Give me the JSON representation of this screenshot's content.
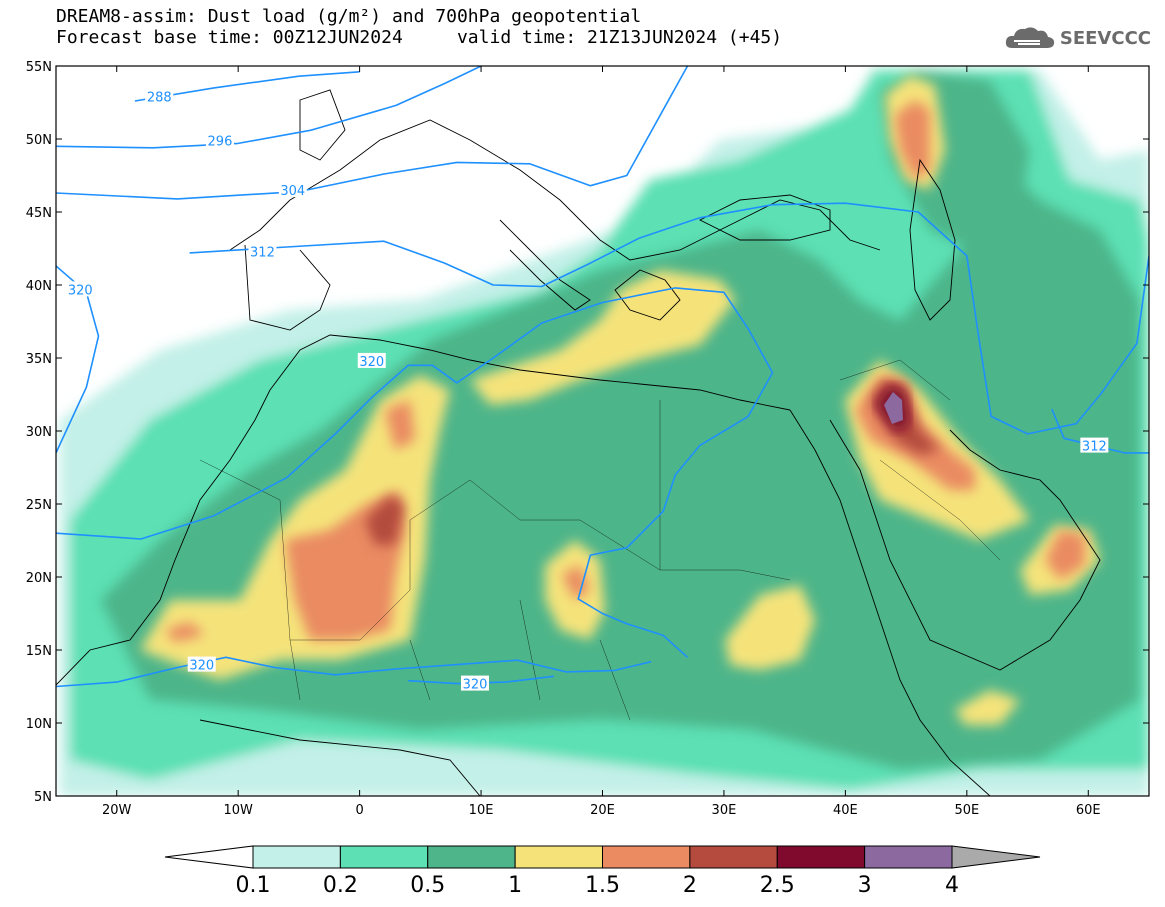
{
  "title": {
    "line1": "DREAM8-assim: Dust load (g/m²) and 700hPa geopotential",
    "line2": "Forecast base time: 00Z12JUN2024     valid time: 21Z13JUN2024 (+45)"
  },
  "logo": {
    "text": "SEEVCCC",
    "icon": "cloud-icon"
  },
  "map": {
    "lon_range": [
      -25,
      65
    ],
    "lat_range": [
      5,
      55
    ],
    "lon_ticks": [
      {
        "value": -20,
        "label": "20W"
      },
      {
        "value": -10,
        "label": "10W"
      },
      {
        "value": 0,
        "label": "0"
      },
      {
        "value": 10,
        "label": "10E"
      },
      {
        "value": 20,
        "label": "20E"
      },
      {
        "value": 30,
        "label": "30E"
      },
      {
        "value": 40,
        "label": "40E"
      },
      {
        "value": 50,
        "label": "50E"
      },
      {
        "value": 60,
        "label": "60E"
      }
    ],
    "lat_ticks": [
      {
        "value": 55,
        "label": "55N"
      },
      {
        "value": 50,
        "label": "50N"
      },
      {
        "value": 45,
        "label": "45N"
      },
      {
        "value": 40,
        "label": "40N"
      },
      {
        "value": 35,
        "label": "35N"
      },
      {
        "value": 30,
        "label": "30N"
      },
      {
        "value": 25,
        "label": "25N"
      },
      {
        "value": 20,
        "label": "20N"
      },
      {
        "value": 15,
        "label": "15N"
      },
      {
        "value": 10,
        "label": "10N"
      },
      {
        "value": 5,
        "label": "5N"
      }
    ],
    "contour_color": "#1e90ff",
    "contours": [
      {
        "label": "288",
        "label_at": [
          -16.5,
          52.9
        ],
        "points": [
          [
            -18.5,
            52.6
          ],
          [
            -12,
            53.5
          ],
          [
            -5,
            54.3
          ],
          [
            0,
            54.6
          ]
        ]
      },
      {
        "label": "296",
        "label_at": [
          -11.5,
          49.9
        ],
        "points": [
          [
            -25,
            49.5
          ],
          [
            -17,
            49.4
          ],
          [
            -10,
            49.7
          ],
          [
            -4,
            50.6
          ],
          [
            3,
            52.3
          ],
          [
            7,
            53.8
          ],
          [
            10,
            55
          ]
        ]
      },
      {
        "label": "304",
        "label_at": [
          -5.5,
          46.5
        ],
        "points": [
          [
            -25,
            46.3
          ],
          [
            -15,
            45.9
          ],
          [
            -5,
            46.4
          ],
          [
            2,
            47.6
          ],
          [
            8,
            48.4
          ],
          [
            14,
            48.3
          ],
          [
            19,
            46.8
          ],
          [
            22,
            47.5
          ],
          [
            25,
            52
          ],
          [
            27,
            55
          ]
        ]
      },
      {
        "label": "312",
        "label_at": [
          -8,
          42.3
        ],
        "points": [
          [
            -14,
            42.2
          ],
          [
            -6,
            42.6
          ],
          [
            2,
            43.0
          ],
          [
            7,
            41.5
          ],
          [
            11,
            40.0
          ],
          [
            15,
            39.9
          ],
          [
            19,
            41.5
          ],
          [
            23,
            43.2
          ],
          [
            28,
            44.6
          ],
          [
            34,
            45.5
          ],
          [
            40,
            45.6
          ],
          [
            46,
            45.0
          ],
          [
            50,
            42.0
          ],
          [
            51,
            36.3
          ],
          [
            52,
            31.0
          ],
          [
            55,
            29.8
          ],
          [
            59,
            30.5
          ],
          [
            61,
            32.5
          ],
          [
            64,
            36.0
          ],
          [
            65,
            42.0
          ]
        ]
      },
      {
        "label": "312",
        "label_at": [
          60.5,
          29.0
        ],
        "points": [
          [
            57,
            31.5
          ],
          [
            58,
            29.5
          ],
          [
            60.5,
            29.0
          ],
          [
            63,
            28.5
          ],
          [
            65,
            28.5
          ]
        ]
      },
      {
        "label": "320",
        "label_at": [
          -23,
          39.7
        ],
        "points": [
          [
            -25,
            28.5
          ],
          [
            -22.5,
            33
          ],
          [
            -21.5,
            36.5
          ],
          [
            -22.5,
            39.5
          ],
          [
            -25,
            41.3
          ]
        ]
      },
      {
        "label": "320",
        "label_at": [
          1,
          34.8
        ],
        "points": [
          [
            -25,
            23.0
          ],
          [
            -18,
            22.6
          ],
          [
            -12,
            24.2
          ],
          [
            -6,
            26.8
          ],
          [
            -2,
            29.8
          ],
          [
            1,
            32.3
          ],
          [
            4,
            34.5
          ],
          [
            6,
            34.5
          ],
          [
            8,
            33.3
          ],
          [
            11,
            35.0
          ],
          [
            15,
            37.4
          ],
          [
            20,
            38.8
          ],
          [
            26,
            39.8
          ],
          [
            30,
            39.5
          ],
          [
            32,
            37.0
          ],
          [
            34,
            34.0
          ],
          [
            32,
            31.0
          ],
          [
            28,
            29.0
          ],
          [
            26,
            27.0
          ],
          [
            25,
            24.5
          ],
          [
            22,
            22.0
          ],
          [
            19,
            21.5
          ],
          [
            18,
            18.5
          ],
          [
            20,
            17.5
          ],
          [
            22,
            16.8
          ],
          [
            25,
            16.0
          ],
          [
            27,
            14.5
          ]
        ]
      },
      {
        "label": "320",
        "label_at": [
          -13,
          14.0
        ],
        "points": [
          [
            -25,
            12.5
          ],
          [
            -20,
            12.8
          ],
          [
            -15,
            13.8
          ],
          [
            -11,
            14.5
          ],
          [
            -7,
            13.8
          ],
          [
            -2,
            13.3
          ],
          [
            3,
            13.7
          ],
          [
            8,
            14.0
          ],
          [
            13,
            14.3
          ],
          [
            17,
            13.5
          ],
          [
            21,
            13.6
          ],
          [
            24,
            14.2
          ]
        ]
      },
      {
        "label": "320",
        "label_at": [
          9.5,
          12.7
        ],
        "points": [
          [
            4,
            12.9
          ],
          [
            8,
            12.7
          ],
          [
            12,
            12.8
          ],
          [
            16,
            13.2
          ]
        ]
      }
    ],
    "colorbar": {
      "levels": [
        "0.1",
        "0.2",
        "0.5",
        "1",
        "1.5",
        "2",
        "2.5",
        "3",
        "4"
      ],
      "colors": [
        "#ffffff",
        "#c3f0e8",
        "#5ce0b4",
        "#4eb58a",
        "#f5e37a",
        "#ea8b62",
        "#b44b3e",
        "#7f0a2e",
        "#8c6aa0",
        "#aaaaaa"
      ]
    }
  }
}
